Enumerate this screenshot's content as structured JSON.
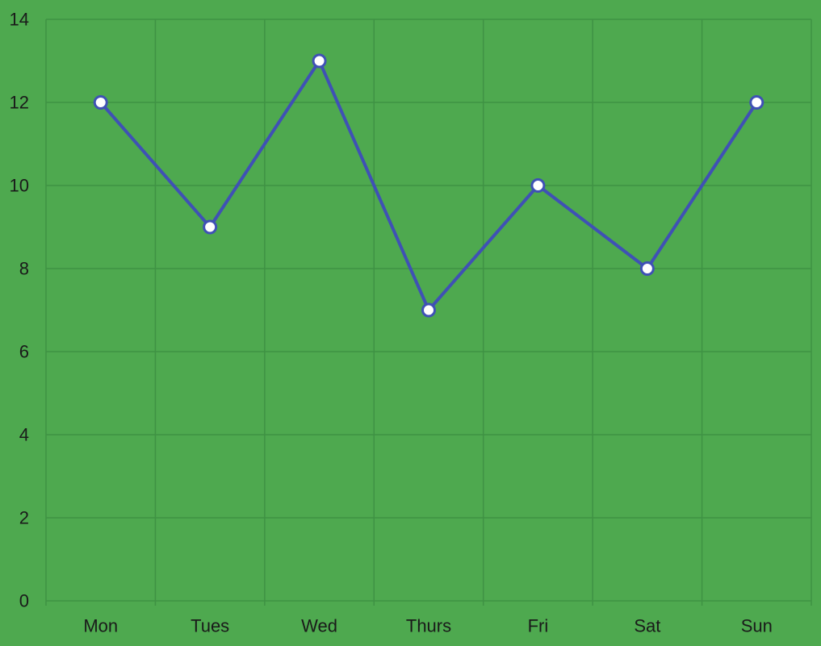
{
  "colors": {
    "background": "#4ea94f",
    "grid": "#3f9244",
    "line": "#3f51b5",
    "point_fill": "#ffffff",
    "text": "#1a1a1a"
  },
  "chart_data": {
    "type": "line",
    "categories": [
      "Mon",
      "Tues",
      "Wed",
      "Thurs",
      "Fri",
      "Sat",
      "Sun"
    ],
    "series": [
      {
        "values": [
          12,
          9,
          13,
          7,
          10,
          8,
          12
        ]
      }
    ],
    "ylim": [
      0,
      14
    ],
    "y_ticks": [
      0,
      2,
      4,
      6,
      8,
      10,
      12,
      14
    ],
    "grid": true,
    "legend": "none"
  }
}
